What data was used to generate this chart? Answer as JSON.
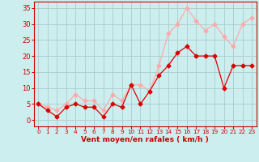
{
  "x_labels": [
    "0",
    "1",
    "2",
    "3",
    "4",
    "5",
    "6",
    "7",
    "8",
    "9",
    "10",
    "11",
    "12",
    "13",
    "14",
    "15",
    "16",
    "17",
    "18",
    "19",
    "20",
    "21",
    "22",
    "23"
  ],
  "x_vals": [
    0,
    1,
    2,
    3,
    4,
    5,
    6,
    7,
    8,
    9,
    10,
    11,
    12,
    13,
    14,
    15,
    16,
    17,
    18,
    19,
    20,
    21,
    22,
    23
  ],
  "wind_avg": [
    5,
    3,
    1,
    4,
    5,
    4,
    4,
    1,
    5,
    4,
    11,
    5,
    9,
    14,
    17,
    21,
    23,
    20,
    20,
    20,
    10,
    17,
    17,
    17
  ],
  "wind_gust": [
    5,
    4,
    3,
    5,
    8,
    6,
    6,
    3,
    8,
    6,
    11,
    11,
    9,
    17,
    27,
    30,
    35,
    31,
    28,
    30,
    26,
    23,
    30,
    32
  ],
  "color_avg": "#dd0000",
  "color_gust": "#ffaaaa",
  "bg_color": "#cceeee",
  "grid_color": "#aacccc",
  "axis_color": "#cc0000",
  "xlabel": "Vent moyen/en rafales ( km/h )",
  "ylim": [
    -2,
    37
  ],
  "yticks": [
    0,
    5,
    10,
    15,
    20,
    25,
    30,
    35
  ],
  "marker": "D",
  "markersize": 2.5,
  "linewidth": 0.9
}
